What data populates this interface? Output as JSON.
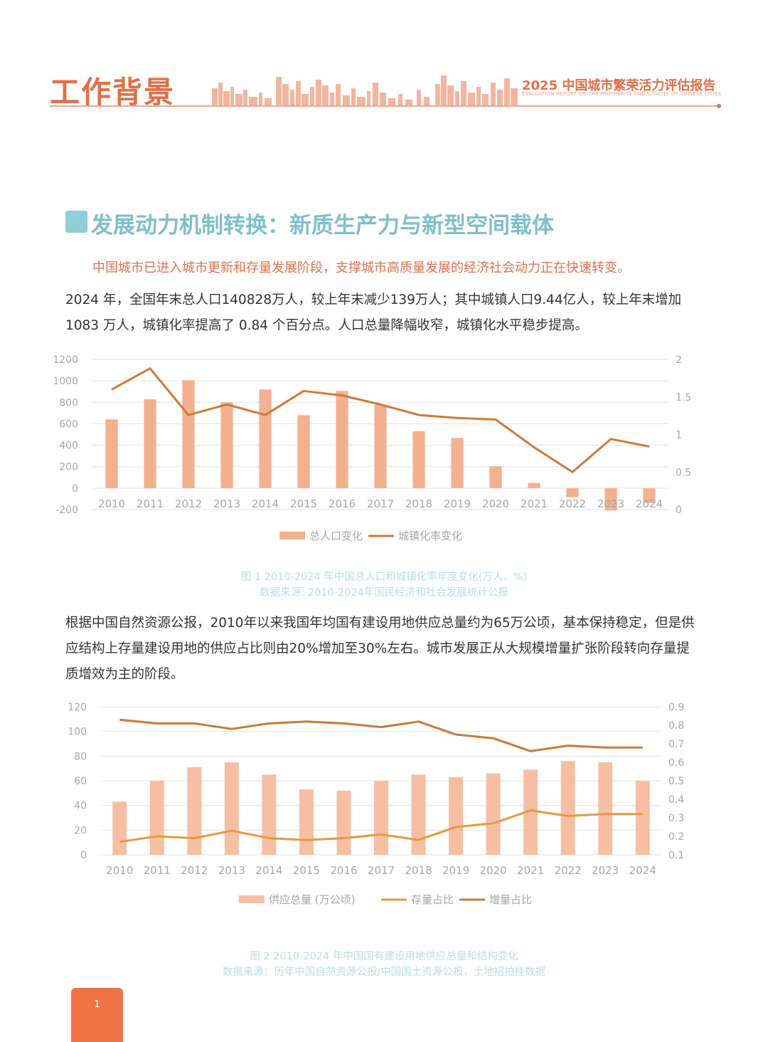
{
  "header": {
    "title": "工作背景",
    "report_title": "2025 中国城市繁荣活力评估报告",
    "report_subtitle": "EVALUATION REPORT ON THE PROSPERITY AND VITALITY OF CHINESE CITIES"
  },
  "section": {
    "title": "发展动力机制转换：新质生产力与新型空间载体",
    "highlight": "中国城市已进入城市更新和存量发展阶段，支撑城市高质量发展的经济社会动力正在快速转变。"
  },
  "paragraphs": [
    "2024 年，全国年末总人口140828万人，较上年末减少139万人；其中城镇人口9.44亿人，较上年末增加 1083 万人，城镇化率提高了 0.84 个百分点。人口总量降幅收窄，城镇化水平稳步提高。",
    "根据中国自然资源公报，2010年以来我国年均国有建设用地供应总量约为65万公顷，基本保持稳定，但是供应结构上存量建设用地的供应占比则由20%增加至30%左右。城市发展正从大规模增量扩张阶段转向存量提质增效为主的阶段。"
  ],
  "captions": {
    "fig1_title": "图 1  2010-2024 年中国总人口和城镇化率年度变化(万人，%)",
    "fig1_source": "数据来源: 2010-2024年国民经济和社会发展统计公报",
    "fig2_title": "图 2  2010-2024 年中国国有建设用地供应总量和结构变化",
    "fig2_source": "数据来源：历年中国自然资源公报/中国国土资源公报，土地招拍挂数据"
  },
  "page_number": "1",
  "colors": {
    "accent": "#e0704a",
    "bar1": "#f3b18f",
    "line1": "#cf7a3a",
    "bar2": "#f6bfa4",
    "line_stock": "#e89a3c",
    "line_incr": "#c87a3a",
    "teal": "#8fcfd8"
  },
  "chart_data": [
    {
      "type": "bar",
      "categories": [
        "2010",
        "2011",
        "2012",
        "2013",
        "2014",
        "2015",
        "2016",
        "2017",
        "2018",
        "2019",
        "2020",
        "2021",
        "2022",
        "2023",
        "2024"
      ],
      "series": [
        {
          "name": "总人口变化",
          "type": "bar",
          "axis": "left",
          "values": [
            641,
            828,
            1006,
            800,
            920,
            680,
            906,
            779,
            530,
            467,
            204,
            48,
            -85,
            -208,
            -139
          ]
        },
        {
          "name": "城镇化率变化",
          "type": "line",
          "axis": "right",
          "values": [
            1.6,
            1.88,
            1.26,
            1.4,
            1.26,
            1.58,
            1.52,
            1.4,
            1.26,
            1.22,
            1.2,
            0.83,
            0.5,
            0.94,
            0.84
          ]
        }
      ],
      "yticks_left": [
        "-200",
        "0",
        "200",
        "400",
        "600",
        "800",
        "1000",
        "1200"
      ],
      "yticks_right": [
        "0",
        "0.5",
        "1",
        "1.5",
        "2"
      ],
      "ylim_left": [
        -200,
        1200
      ],
      "ylim_right": [
        0,
        2
      ],
      "legend": "bottom"
    },
    {
      "type": "bar",
      "categories": [
        "2010",
        "2011",
        "2012",
        "2013",
        "2014",
        "2015",
        "2016",
        "2017",
        "2018",
        "2019",
        "2020",
        "2021",
        "2022",
        "2023",
        "2024"
      ],
      "series": [
        {
          "name": "供应总量 (万公顷)",
          "type": "bar",
          "axis": "left",
          "values": [
            43,
            60,
            71,
            75,
            65,
            53,
            52,
            60,
            65,
            63,
            66,
            69,
            76,
            75,
            60
          ]
        },
        {
          "name": "存量占比",
          "type": "line",
          "axis": "right",
          "values": [
            0.17,
            0.2,
            0.19,
            0.23,
            0.19,
            0.18,
            0.19,
            0.21,
            0.18,
            0.25,
            0.27,
            0.34,
            0.31,
            0.32,
            0.32
          ]
        },
        {
          "name": "增量占比",
          "type": "line",
          "axis": "right",
          "values": [
            0.83,
            0.81,
            0.81,
            0.78,
            0.81,
            0.82,
            0.81,
            0.79,
            0.82,
            0.75,
            0.73,
            0.66,
            0.69,
            0.68,
            0.68
          ]
        }
      ],
      "yticks_left": [
        "0",
        "20",
        "40",
        "60",
        "80",
        "100",
        "120"
      ],
      "yticks_right": [
        "0.1",
        "0.2",
        "0.3",
        "0.4",
        "0.5",
        "0.6",
        "0.7",
        "0.8",
        "0.9"
      ],
      "ylim_left": [
        0,
        120
      ],
      "ylim_right": [
        0.1,
        0.9
      ],
      "legend": "bottom"
    }
  ]
}
